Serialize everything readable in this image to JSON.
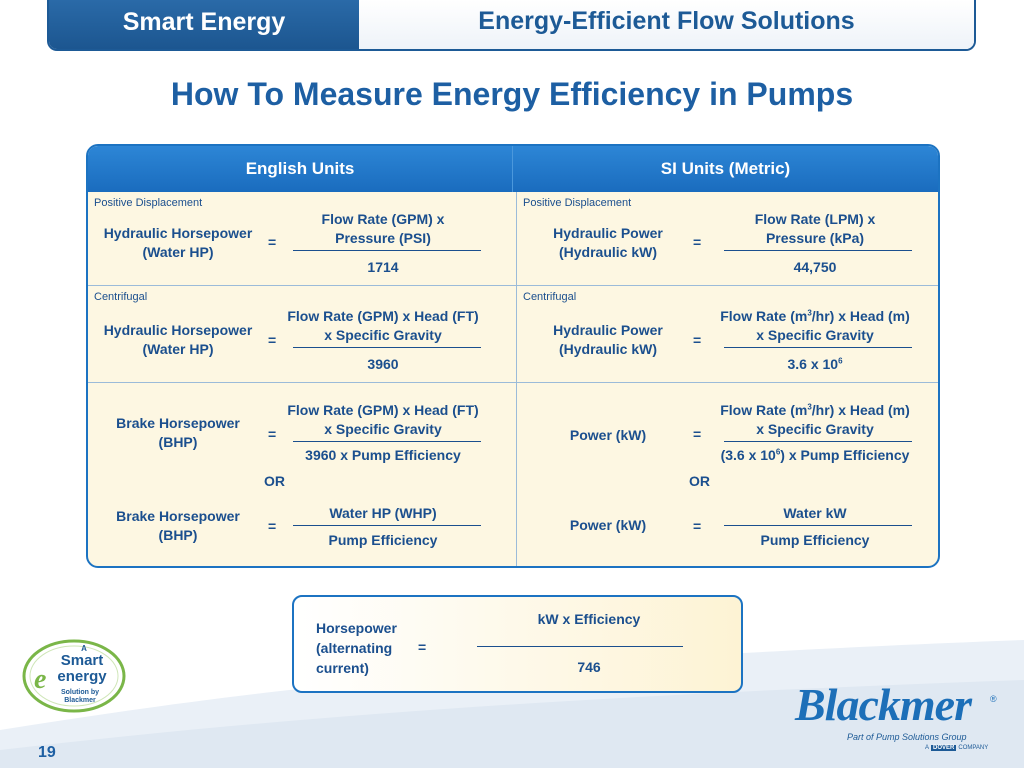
{
  "header": {
    "left": "Smart Energy",
    "right": "Energy-Efficient Flow Solutions"
  },
  "title": "How To Measure Energy Efficiency in Pumps",
  "table": {
    "col_english": "English Units",
    "col_si": "SI Units (Metric)",
    "row1": {
      "section": "Positive Displacement",
      "en_label_1": "Hydraulic Horsepower",
      "en_label_2": "(Water HP)",
      "eq": "=",
      "en_num_1": "Flow Rate (GPM) x",
      "en_num_2": "Pressure (PSI)",
      "en_den": "1714",
      "si_label_1": "Hydraulic Power",
      "si_label_2": "(Hydraulic kW)",
      "si_num_1": "Flow Rate (LPM) x",
      "si_num_2": "Pressure (kPa)",
      "si_den": "44,750"
    },
    "row2": {
      "section": "Centrifugal",
      "en_label_1": "Hydraulic Horsepower",
      "en_label_2": "(Water HP)",
      "en_num_1": "Flow Rate (GPM) x Head (FT)",
      "en_num_2": "x Specific Gravity",
      "en_den": "3960",
      "si_label_1": "Hydraulic Power",
      "si_label_2": "(Hydraulic kW)",
      "si_num_1a": "Flow Rate (m",
      "si_num_1b": "3",
      "si_num_1c": "/hr) x Head (m)",
      "si_num_2": "x Specific Gravity",
      "si_den_a": "3.6 x 10",
      "si_den_b": "6"
    },
    "row3": {
      "en_label_1": "Brake Horsepower",
      "en_label_2": "(BHP)",
      "en_num_1": "Flow Rate (GPM) x Head (FT)",
      "en_num_2": "x Specific Gravity",
      "en_den": "3960 x Pump Efficiency",
      "or": "OR",
      "si_label": "Power (kW)",
      "si_num_1a": "Flow Rate (m",
      "si_num_1b": "3",
      "si_num_1c": "/hr) x Head (m)",
      "si_num_2": "x Specific Gravity",
      "si_den_a": "(3.6 x 10",
      "si_den_b": "6",
      "si_den_c": ") x Pump Efficiency",
      "en2_label_1": "Brake Horsepower",
      "en2_label_2": "(BHP)",
      "en2_num": "Water HP (WHP)",
      "en2_den": "Pump Efficiency",
      "si2_label": "Power (kW)",
      "si2_num": "Water kW",
      "si2_den": "Pump Efficiency"
    }
  },
  "bottom": {
    "label_1": "Horsepower",
    "label_2": "(alternating",
    "label_3": "current)",
    "eq": "=",
    "num": "kW x Efficiency",
    "den": "746"
  },
  "logo_smart": {
    "a": "A",
    "smart": "Smart",
    "energy": "energy",
    "sub_1": "Solution by",
    "sub_2": "Blackmer"
  },
  "logo_blackmer": {
    "name": "Blackmer",
    "reg": "®",
    "tagline": "Part of Pump Solutions Group",
    "dover_a": "A",
    "dover": "DOVER",
    "dover_company": "COMPANY"
  },
  "page_number": "19",
  "colors": {
    "primary": "#1d5a96",
    "table_header": "#1c73c2",
    "cell_bg": "#fdf7e2",
    "logo_green": "#7ab648"
  }
}
